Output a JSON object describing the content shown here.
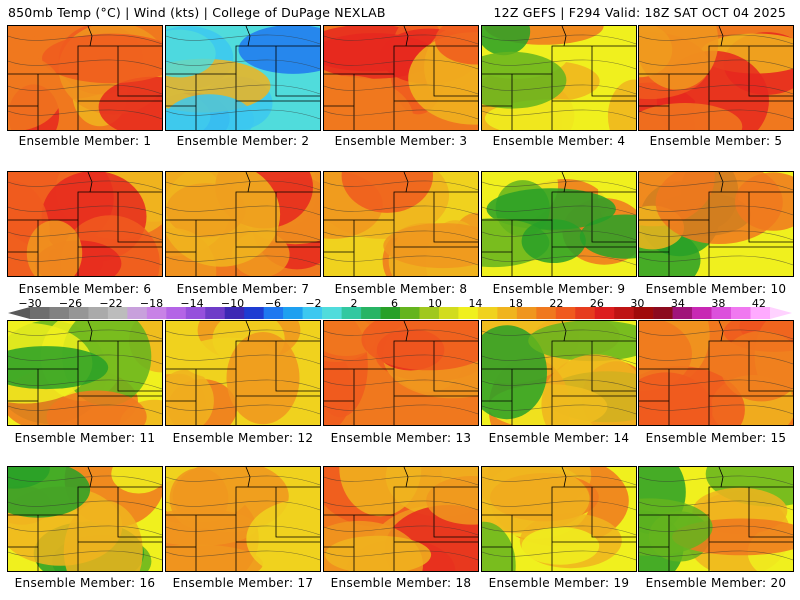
{
  "header": {
    "left": "850mb Temp (°C) | Wind (kts) | College of DuPage NEXLAB",
    "right": "12Z GEFS | F294 Valid: 18Z SAT OCT 04 2025"
  },
  "colorbar": {
    "labels": [
      "−30",
      "−26",
      "−22",
      "−18",
      "−14",
      "−10",
      "−6",
      "−2",
      "2",
      "6",
      "10",
      "14",
      "18",
      "22",
      "26",
      "30",
      "34",
      "38",
      "42"
    ],
    "colors": [
      "#6e6e6e",
      "#828282",
      "#969696",
      "#aaaaaa",
      "#bcbcbc",
      "#c8a0dc",
      "#c882e6",
      "#b464e6",
      "#9650dc",
      "#6e3cc8",
      "#3c28b4",
      "#1e3cd2",
      "#1e78f0",
      "#1ea0f0",
      "#3cc8f0",
      "#50dcdc",
      "#32c8a0",
      "#28b464",
      "#28a028",
      "#64b41e",
      "#a0c81e",
      "#d2dc1e",
      "#f0f01e",
      "#f0d21e",
      "#f0b41e",
      "#f0961e",
      "#f0781e",
      "#f05a1e",
      "#e63c1e",
      "#dc1e1e",
      "#be1414",
      "#a00a0a",
      "#8c0a1e",
      "#a0147a",
      "#c828b4",
      "#dc50dc",
      "#f078f0",
      "#ffaaff"
    ]
  },
  "members": [
    {
      "label": "Ensemble Member: 1",
      "palette": "hot"
    },
    {
      "label": "Ensemble Member: 2",
      "palette": "cold"
    },
    {
      "label": "Ensemble Member: 3",
      "palette": "hot"
    },
    {
      "label": "Ensemble Member: 4",
      "palette": "mixed"
    },
    {
      "label": "Ensemble Member: 5",
      "palette": "hot"
    },
    {
      "label": "Ensemble Member: 6",
      "palette": "hot"
    },
    {
      "label": "Ensemble Member: 7",
      "palette": "hot"
    },
    {
      "label": "Ensemble Member: 8",
      "palette": "warm"
    },
    {
      "label": "Ensemble Member: 9",
      "palette": "mixed"
    },
    {
      "label": "Ensemble Member: 10",
      "palette": "mixed"
    },
    {
      "label": "Ensemble Member: 11",
      "palette": "mixed"
    },
    {
      "label": "Ensemble Member: 12",
      "palette": "warm"
    },
    {
      "label": "Ensemble Member: 13",
      "palette": "hot"
    },
    {
      "label": "Ensemble Member: 14",
      "palette": "mixed"
    },
    {
      "label": "Ensemble Member: 15",
      "palette": "hot"
    },
    {
      "label": "Ensemble Member: 16",
      "palette": "mixed"
    },
    {
      "label": "Ensemble Member: 17",
      "palette": "warm"
    },
    {
      "label": "Ensemble Member: 18",
      "palette": "hot"
    },
    {
      "label": "Ensemble Member: 19",
      "palette": "mixed"
    },
    {
      "label": "Ensemble Member: 20",
      "palette": "mixed"
    }
  ],
  "palettes": {
    "hot": [
      "#e6281e",
      "#f05a1e",
      "#f0781e",
      "#f0961e",
      "#f0b41e"
    ],
    "warm": [
      "#f0b41e",
      "#f0961e",
      "#f0d21e",
      "#f0781e",
      "#f05a1e"
    ],
    "mixed": [
      "#f0781e",
      "#f0b41e",
      "#f0f01e",
      "#64b41e",
      "#28a028"
    ],
    "cold": [
      "#f0b41e",
      "#d2dc1e",
      "#50dcdc",
      "#3cc8f0",
      "#1e78f0"
    ]
  }
}
